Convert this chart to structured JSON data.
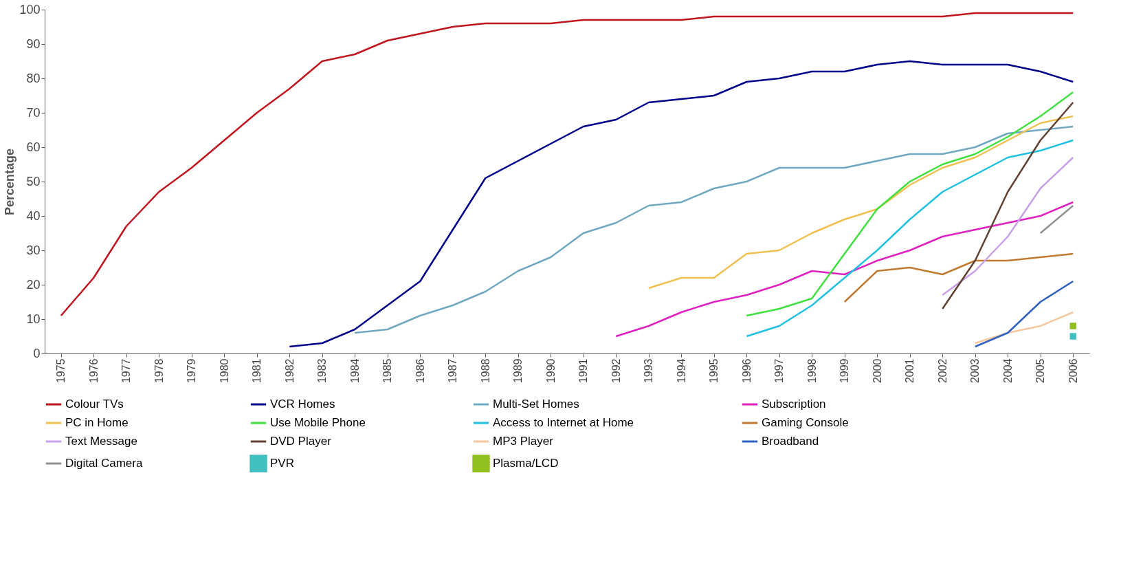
{
  "chart_data": {
    "type": "line",
    "ylabel": "Percentage",
    "categories": [
      "1975",
      "1976",
      "1977",
      "1978",
      "1979",
      "1980",
      "1981",
      "1982",
      "1983",
      "1984",
      "1985",
      "1986",
      "1987",
      "1988",
      "1989",
      "1990",
      "1991",
      "1992",
      "1993",
      "1994",
      "1995",
      "1996",
      "1997",
      "1998",
      "1999",
      "2000",
      "2001",
      "2002",
      "2003",
      "2004",
      "2005",
      "2006"
    ],
    "ylim": [
      0,
      100
    ],
    "yticks": [
      0,
      10,
      20,
      30,
      40,
      50,
      60,
      70,
      80,
      90,
      100
    ],
    "grid": false,
    "legend": "bottom",
    "line_style": "solid",
    "series": [
      {
        "name": "Colour TVs",
        "color": "#c0141e",
        "values": [
          11,
          22,
          37,
          47,
          54,
          62,
          70,
          77,
          85,
          87,
          91,
          93,
          95,
          96,
          96,
          96,
          97,
          97,
          97,
          97,
          98,
          98,
          98,
          98,
          98,
          98,
          98,
          98,
          99,
          99,
          99,
          99
        ]
      },
      {
        "name": "VCR Homes",
        "color": "#00008b",
        "values": [
          null,
          null,
          null,
          null,
          null,
          null,
          null,
          2,
          3,
          7,
          14,
          21,
          36,
          51,
          56,
          61,
          66,
          68,
          73,
          74,
          75,
          79,
          80,
          82,
          82,
          84,
          85,
          84,
          84,
          84,
          82,
          79
        ]
      },
      {
        "name": "Multi-Set Homes",
        "color": "#6fa8c0",
        "values": [
          null,
          null,
          null,
          null,
          null,
          null,
          null,
          null,
          null,
          6,
          7,
          11,
          14,
          18,
          24,
          28,
          35,
          38,
          43,
          44,
          48,
          50,
          54,
          54,
          54,
          56,
          58,
          58,
          60,
          64,
          65,
          66
        ]
      },
      {
        "name": "Subscription",
        "color": "#e020c0",
        "values": [
          null,
          null,
          null,
          null,
          null,
          null,
          null,
          null,
          null,
          null,
          null,
          null,
          null,
          null,
          null,
          null,
          null,
          5,
          8,
          12,
          15,
          17,
          20,
          24,
          23,
          27,
          30,
          34,
          36,
          38,
          40,
          44
        ]
      },
      {
        "name": "PC in Home",
        "color": "#f0c050",
        "values": [
          null,
          null,
          null,
          null,
          null,
          null,
          null,
          null,
          null,
          null,
          null,
          null,
          null,
          null,
          null,
          null,
          null,
          null,
          19,
          22,
          22,
          29,
          30,
          35,
          39,
          42,
          49,
          54,
          57,
          62,
          67,
          69
        ]
      },
      {
        "name": "Use Mobile Phone",
        "color": "#40e040",
        "values": [
          null,
          null,
          null,
          null,
          null,
          null,
          null,
          null,
          null,
          null,
          null,
          null,
          null,
          null,
          null,
          null,
          null,
          null,
          null,
          null,
          null,
          11,
          13,
          16,
          29,
          42,
          50,
          55,
          58,
          63,
          69,
          76
        ]
      },
      {
        "name": "Access to Internet at Home",
        "color": "#20c0e0",
        "values": [
          null,
          null,
          null,
          null,
          null,
          null,
          null,
          null,
          null,
          null,
          null,
          null,
          null,
          null,
          null,
          null,
          null,
          null,
          null,
          null,
          null,
          5,
          8,
          14,
          22,
          30,
          39,
          47,
          52,
          57,
          59,
          62
        ]
      },
      {
        "name": "Gaming Console",
        "color": "#c07a30",
        "values": [
          null,
          null,
          null,
          null,
          null,
          null,
          null,
          null,
          null,
          null,
          null,
          null,
          null,
          null,
          null,
          null,
          null,
          null,
          null,
          null,
          null,
          null,
          null,
          null,
          15,
          24,
          25,
          23,
          27,
          27,
          28,
          29
        ]
      },
      {
        "name": "Text Message",
        "color": "#c8a0e8",
        "values": [
          null,
          null,
          null,
          null,
          null,
          null,
          null,
          null,
          null,
          null,
          null,
          null,
          null,
          null,
          null,
          null,
          null,
          null,
          null,
          null,
          null,
          null,
          null,
          null,
          null,
          null,
          null,
          17,
          24,
          34,
          48,
          57
        ]
      },
      {
        "name": "DVD Player",
        "color": "#604030",
        "values": [
          null,
          null,
          null,
          null,
          null,
          null,
          null,
          null,
          null,
          null,
          null,
          null,
          null,
          null,
          null,
          null,
          null,
          null,
          null,
          null,
          null,
          null,
          null,
          null,
          null,
          null,
          null,
          13,
          27,
          47,
          62,
          73
        ]
      },
      {
        "name": "MP3 Player",
        "color": "#f5c8a0",
        "values": [
          null,
          null,
          null,
          null,
          null,
          null,
          null,
          null,
          null,
          null,
          null,
          null,
          null,
          null,
          null,
          null,
          null,
          null,
          null,
          null,
          null,
          null,
          null,
          null,
          null,
          null,
          null,
          null,
          3,
          6,
          8,
          12
        ]
      },
      {
        "name": "Broadband",
        "color": "#3060c0",
        "values": [
          null,
          null,
          null,
          null,
          null,
          null,
          null,
          null,
          null,
          null,
          null,
          null,
          null,
          null,
          null,
          null,
          null,
          null,
          null,
          null,
          null,
          null,
          null,
          null,
          null,
          null,
          null,
          null,
          2,
          6,
          15,
          21
        ]
      },
      {
        "name": "Digital Camera",
        "color": "#909090",
        "values": [
          null,
          null,
          null,
          null,
          null,
          null,
          null,
          null,
          null,
          null,
          null,
          null,
          null,
          null,
          null,
          null,
          null,
          null,
          null,
          null,
          null,
          null,
          null,
          null,
          null,
          null,
          null,
          null,
          null,
          null,
          35,
          43
        ]
      },
      {
        "name": "PVR",
        "color": "#40c0c0",
        "type": "scatter",
        "marker": "square",
        "values": [
          null,
          null,
          null,
          null,
          null,
          null,
          null,
          null,
          null,
          null,
          null,
          null,
          null,
          null,
          null,
          null,
          null,
          null,
          null,
          null,
          null,
          null,
          null,
          null,
          null,
          null,
          null,
          null,
          null,
          null,
          null,
          5
        ]
      },
      {
        "name": "Plasma/LCD",
        "color": "#90c020",
        "type": "scatter",
        "marker": "square",
        "values": [
          null,
          null,
          null,
          null,
          null,
          null,
          null,
          null,
          null,
          null,
          null,
          null,
          null,
          null,
          null,
          null,
          null,
          null,
          null,
          null,
          null,
          null,
          null,
          null,
          null,
          null,
          null,
          null,
          null,
          null,
          null,
          8
        ]
      }
    ]
  }
}
